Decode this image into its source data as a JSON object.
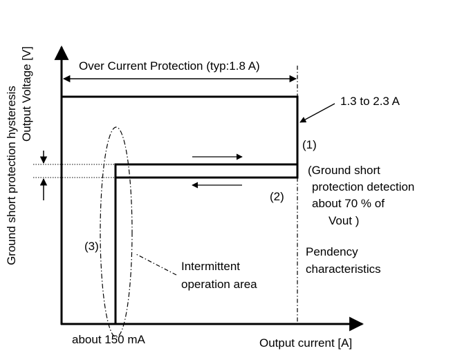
{
  "labels": {
    "y_axis": "Output Voltage [V]",
    "x_axis": "Output current [A]",
    "hysteresis": "Ground short protection hysteresis",
    "ocp": "Over Current Protection (typ:1.8 A)",
    "range": "1.3 to 2.3 A",
    "marker_1": "(1)",
    "marker_2": "(2)",
    "marker_3": "(3)",
    "gsp_line1": "(Ground short",
    "gsp_line2": "protection detection",
    "gsp_line3": "about 70 % of",
    "gsp_line4": "Vout )",
    "pend_line1": "Pendency",
    "pend_line2": "characteristics",
    "inter_line1": "Intermittent",
    "inter_line2": "operation area",
    "min_current": "about 150 mA"
  }
}
